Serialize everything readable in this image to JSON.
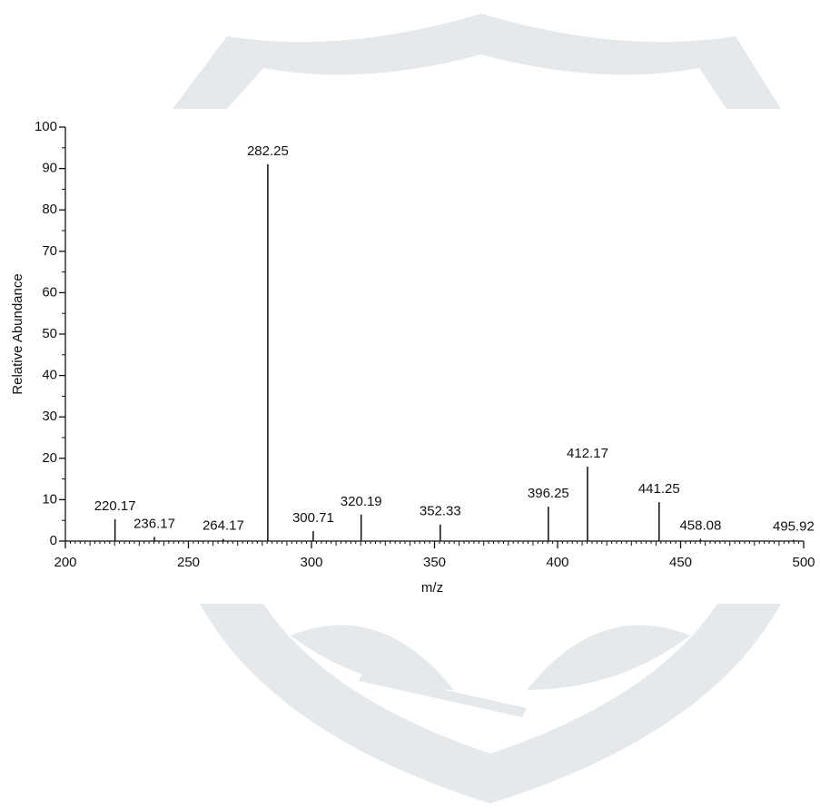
{
  "chart_data": {
    "type": "spectrum",
    "xlabel": "m/z",
    "ylabel": "Relative Abundance",
    "x": [
      220.17,
      236.17,
      264.17,
      282.25,
      300.71,
      320.19,
      352.33,
      396.25,
      412.17,
      441.25,
      458.08,
      495.92
    ],
    "values": [
      5.3,
      1,
      0.5,
      91,
      2.4,
      6.4,
      4,
      8.3,
      18,
      9.4,
      0.5,
      0.3
    ],
    "color": "#1a1a1a",
    "xlim": [
      200,
      500
    ],
    "xticks": [
      200,
      250,
      300,
      350,
      400,
      450,
      500
    ],
    "ylim": [
      0,
      100
    ],
    "yticks": [
      0,
      10,
      20,
      30,
      40,
      50,
      60,
      70,
      80,
      90,
      100
    ]
  }
}
